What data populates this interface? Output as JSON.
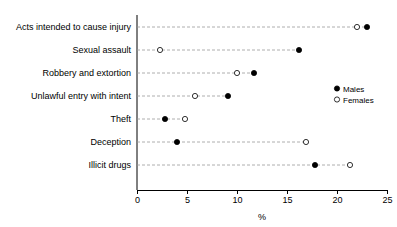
{
  "chart_data": {
    "type": "dot",
    "orientation": "horizontal",
    "x_label": "%",
    "categories": [
      "Acts intended to cause injury",
      "Sexual assault",
      "Robbery and extortion",
      "Unlawful entry with intent",
      "Theft",
      "Deception",
      "Illicit drugs"
    ],
    "series": [
      {
        "name": "Males",
        "color": "#000000",
        "marker": "filled",
        "values": [
          23,
          16.2,
          11.7,
          9.1,
          2.8,
          4,
          17.8
        ]
      },
      {
        "name": "Females",
        "color": "#000000",
        "marker": "open",
        "values": [
          22,
          2.3,
          10,
          5.8,
          4.8,
          16.9,
          21.3
        ]
      }
    ],
    "xlim": [
      0,
      25
    ],
    "xticks": [
      0,
      5,
      10,
      15,
      20,
      25
    ],
    "legend": "right"
  }
}
